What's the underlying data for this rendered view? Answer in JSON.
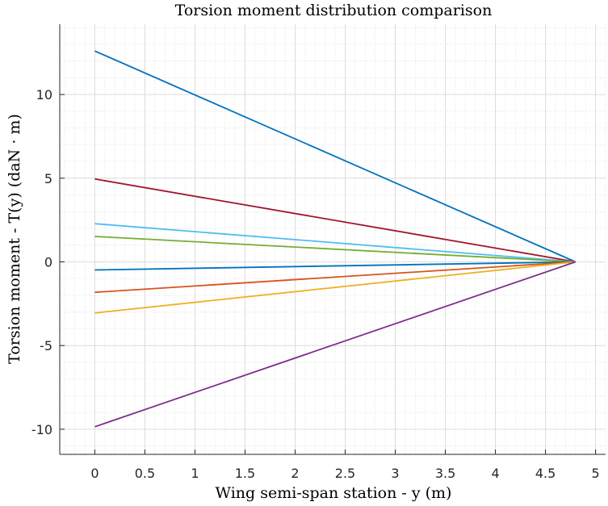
{
  "chart_data": {
    "type": "line",
    "title": "Torsion moment distribution comparison",
    "xlabel": "Wing semi-span station - y (m)",
    "ylabel": "Torsion moment - T(y) (daN · m)",
    "xlim": [
      -0.35,
      5.1
    ],
    "ylim": [
      -11.5,
      14.2
    ],
    "xticks": [
      0,
      0.5,
      1,
      1.5,
      2,
      2.5,
      3,
      3.5,
      4,
      4.5,
      5
    ],
    "yticks": [
      -10,
      -5,
      0,
      5,
      10
    ],
    "grid": true,
    "minor_grid": true,
    "series": [
      {
        "color": "#0072BD",
        "x": [
          0,
          4.8
        ],
        "y": [
          12.6,
          0
        ]
      },
      {
        "color": "#A2142F",
        "x": [
          0,
          4.8
        ],
        "y": [
          4.95,
          0
        ]
      },
      {
        "color": "#4DBEEE",
        "x": [
          0,
          4.8
        ],
        "y": [
          2.28,
          0
        ]
      },
      {
        "color": "#77AC30",
        "x": [
          0,
          4.8
        ],
        "y": [
          1.52,
          0
        ]
      },
      {
        "color": "#0072BD",
        "x": [
          0,
          4.8
        ],
        "y": [
          -0.48,
          0
        ]
      },
      {
        "color": "#D95319",
        "x": [
          0,
          4.8
        ],
        "y": [
          -1.82,
          0
        ]
      },
      {
        "color": "#EDB120",
        "x": [
          0,
          4.8
        ],
        "y": [
          -3.05,
          0
        ]
      },
      {
        "color": "#7E2F8E",
        "x": [
          0,
          4.8
        ],
        "y": [
          -9.85,
          0
        ]
      }
    ]
  }
}
